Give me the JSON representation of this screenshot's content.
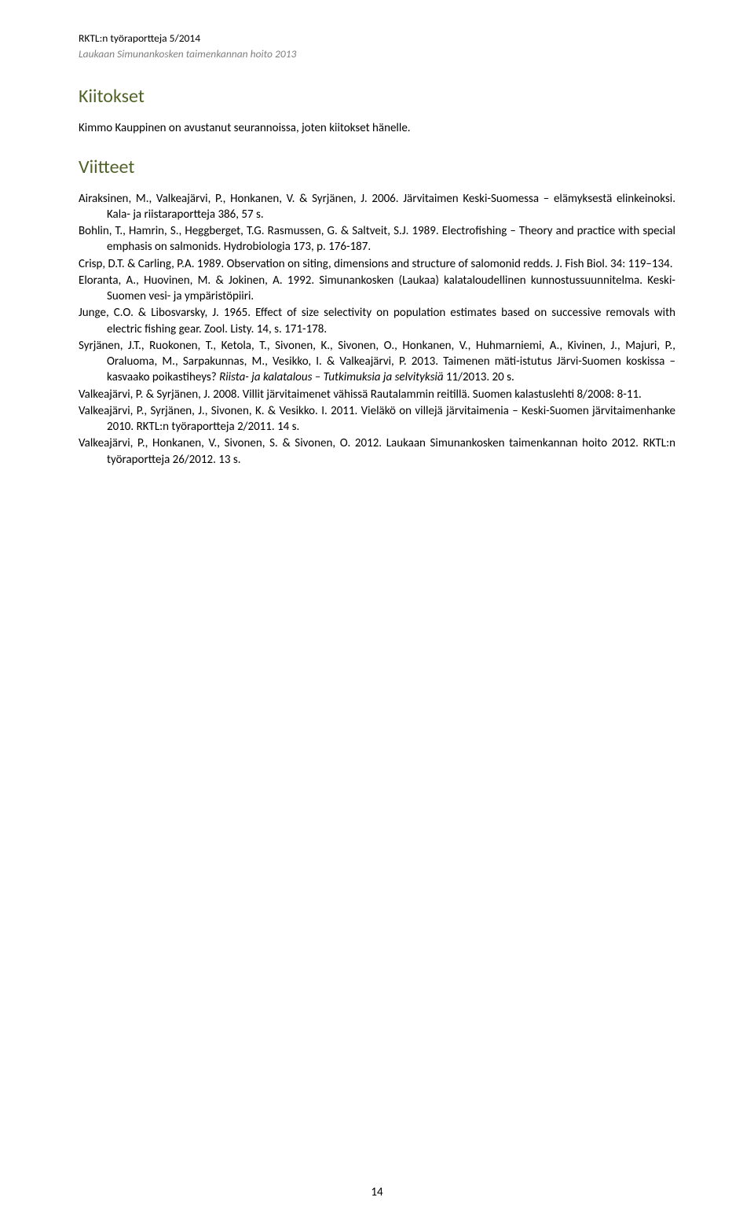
{
  "header": {
    "line1": "RKTL:n työraportteja 5/2014",
    "line2": "Laukaan Simunankosken taimenkannan hoito 2013"
  },
  "heading_kiitokset": "Kiitokset",
  "kiitokset_body": "Kimmo Kauppinen on avustanut seurannoissa, joten kiitokset hänelle.",
  "heading_viitteet": "Viitteet",
  "refs": {
    "r1": "Airaksinen, M., Valkeajärvi, P., Honkanen, V. & Syrjänen, J. 2006. Järvitaimen Keski-Suomessa – elämyksestä elinkeinoksi. Kala- ja riistaraportteja 386, 57 s.",
    "r2": "Bohlin, T., Hamrin, S., Heggberget, T.G. Rasmussen, G. & Saltveit, S.J. 1989. Electrofishing – Theory and practice with special emphasis on salmonids. Hydrobiologia 173, p. 176-187.",
    "r3": "Crisp, D.T. & Carling, P.A. 1989. Observation on siting, dimensions and structure of salomonid redds. J. Fish Biol. 34: 119–134.",
    "r4": "Eloranta, A., Huovinen, M. & Jokinen, A. 1992. Simunankosken (Laukaa) kalataloudellinen kunnostussuunnitelma. Keski-Suomen vesi- ja ympäristöpiiri.",
    "r5": "Junge, C.O. & Libosvarsky, J. 1965. Effect of size selectivity on population estimates based on successive removals with electric fishing gear. Zool. Listy. 14, s. 171-178.",
    "r6a": "Syrjänen, J.T., Ruokonen, T., Ketola, T., Sivonen, K., Sivonen, O., Honkanen, V., Huhmarniemi, A., Kivinen, J., Majuri, P., Oraluoma, M., Sarpakunnas, M., Vesikko, I. & Valkeajärvi, P. 2013. Taimenen mäti-istutus Järvi-Suomen koskissa – kasvaako poikastiheys? ",
    "r6b": "Riista- ja kalatalous – Tutkimuksia ja selvityksiä",
    "r6c": " 11/2013. 20 s.",
    "r7": "Valkeajärvi, P. & Syrjänen, J. 2008. Villit järvitaimenet vähissä Rautalammin reitillä. Suomen kalastuslehti 8/2008: 8-11.",
    "r8": "Valkeajärvi, P., Syrjänen, J., Sivonen, K. & Vesikko. I. 2011. Vieläkö on villejä järvitaimenia – Keski-Suomen järvitaimenhanke 2010. RKTL:n työraportteja 2/2011. 14 s.",
    "r9": "Valkeajärvi, P., Honkanen, V., Sivonen, S. & Sivonen, O. 2012. Laukaan Simunankosken taimenkannan hoito 2012. RKTL:n työraportteja 26/2012. 13 s."
  },
  "page_number": "14"
}
